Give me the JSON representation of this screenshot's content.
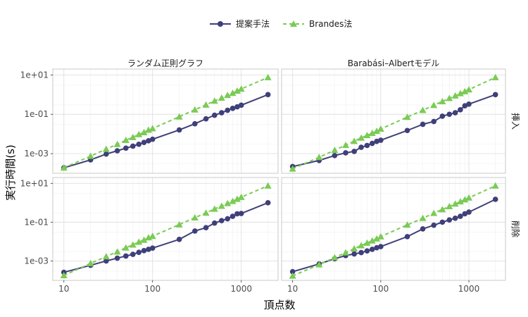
{
  "chart_data": {
    "type": "line",
    "xlabel": "頂点数",
    "ylabel": "実行時間(s)",
    "x_scale": "log",
    "y_scale": "log",
    "xlim": [
      7.5,
      2600
    ],
    "ylim": [
      0.0001,
      20
    ],
    "x_ticks": [
      10,
      100,
      1000
    ],
    "x_tick_labels": [
      "10",
      "100",
      "1000"
    ],
    "y_ticks": [
      0.001,
      0.1,
      10
    ],
    "y_tick_labels": [
      "1e-03",
      "1e-01",
      "1e+01"
    ],
    "legend": {
      "position": "top"
    },
    "grid": true,
    "colors": {
      "proposed": "#3f3f7a",
      "brandes": "#7acb54"
    },
    "x": [
      10,
      20,
      30,
      40,
      50,
      60,
      70,
      80,
      90,
      100,
      200,
      300,
      400,
      500,
      600,
      700,
      800,
      900,
      1000,
      2000
    ],
    "columns": [
      "ランダム正則グラフ",
      "Barabási–Albertモデル"
    ],
    "rows": [
      "挿入",
      "削除"
    ],
    "panels": [
      {
        "column": "ランダム正則グラフ",
        "row": "挿入",
        "series": [
          {
            "name": "提案手法",
            "values": [
              0.00019,
              0.00048,
              0.00095,
              0.0014,
              0.0019,
              0.0024,
              0.003,
              0.0037,
              0.0045,
              0.0054,
              0.016,
              0.033,
              0.059,
              0.09,
              0.12,
              0.16,
              0.2,
              0.24,
              0.29,
              1.0
            ]
          },
          {
            "name": "Brandes法",
            "values": [
              0.00019,
              0.00075,
              0.0017,
              0.003,
              0.0048,
              0.0068,
              0.0095,
              0.012,
              0.016,
              0.019,
              0.075,
              0.17,
              0.3,
              0.48,
              0.68,
              0.94,
              1.2,
              1.55,
              1.95,
              7.5
            ]
          }
        ]
      },
      {
        "column": "Barabási–Albertモデル",
        "row": "挿入",
        "series": [
          {
            "name": "提案手法",
            "values": [
              0.00022,
              0.00045,
              0.0008,
              0.0011,
              0.0013,
              0.0021,
              0.0026,
              0.0033,
              0.0042,
              0.0048,
              0.015,
              0.031,
              0.043,
              0.08,
              0.1,
              0.12,
              0.17,
              0.27,
              0.33,
              1.0
            ]
          },
          {
            "name": "Brandes法",
            "values": [
              0.00017,
              0.00065,
              0.0015,
              0.0027,
              0.0043,
              0.0063,
              0.0085,
              0.011,
              0.014,
              0.018,
              0.072,
              0.16,
              0.29,
              0.45,
              0.65,
              0.88,
              1.15,
              1.45,
              1.8,
              7.5
            ]
          }
        ]
      },
      {
        "column": "ランダム正則グラフ",
        "row": "削除",
        "series": [
          {
            "name": "提案手法",
            "values": [
              0.00026,
              0.0006,
              0.001,
              0.0014,
              0.0018,
              0.0022,
              0.0028,
              0.0034,
              0.004,
              0.0046,
              0.013,
              0.035,
              0.052,
              0.09,
              0.12,
              0.15,
              0.2,
              0.27,
              0.28,
              1.0
            ]
          },
          {
            "name": "Brandes法",
            "values": [
              0.00018,
              0.00075,
              0.0017,
              0.003,
              0.0048,
              0.0068,
              0.0095,
              0.012,
              0.016,
              0.019,
              0.075,
              0.17,
              0.3,
              0.48,
              0.68,
              0.94,
              1.2,
              1.55,
              1.95,
              7.5
            ]
          }
        ]
      },
      {
        "column": "Barabási–Albertモデル",
        "row": "削除",
        "series": [
          {
            "name": "提案手法",
            "values": [
              0.00028,
              0.0007,
              0.0013,
              0.0019,
              0.0023,
              0.0027,
              0.0033,
              0.004,
              0.0048,
              0.0055,
              0.018,
              0.045,
              0.07,
              0.1,
              0.13,
              0.16,
              0.2,
              0.27,
              0.33,
              1.5
            ]
          },
          {
            "name": "Brandes法",
            "values": [
              0.00017,
              0.00065,
              0.0015,
              0.0027,
              0.0043,
              0.0063,
              0.0085,
              0.011,
              0.014,
              0.018,
              0.072,
              0.16,
              0.29,
              0.45,
              0.65,
              0.88,
              1.15,
              1.45,
              1.8,
              7.5
            ]
          }
        ]
      }
    ]
  }
}
